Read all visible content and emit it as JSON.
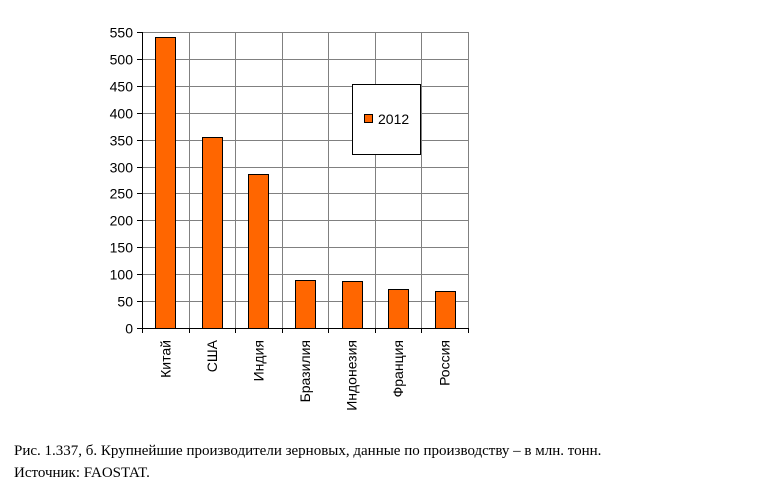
{
  "chart_data": {
    "type": "bar",
    "categories": [
      "Китай",
      "США",
      "Индия",
      "Бразилия",
      "Индонезия",
      "Франция",
      "Россия"
    ],
    "series": [
      {
        "name": "2012",
        "values": [
          540,
          355,
          287,
          90,
          87,
          72,
          69
        ]
      }
    ],
    "ylim": [
      0,
      550
    ],
    "yticks": [
      0,
      50,
      100,
      150,
      200,
      250,
      300,
      350,
      400,
      450,
      500,
      550
    ],
    "grid": true,
    "legend": "top-right",
    "bar_color": "#FF6600",
    "bar_border_color": "#000000",
    "grid_color": "#808080"
  },
  "caption": {
    "line1": "Рис. 1.337, б. Крупнейшие производители зерновых, данные по производству – в млн. тонн.",
    "line2": "Источник: FAOSTAT."
  }
}
